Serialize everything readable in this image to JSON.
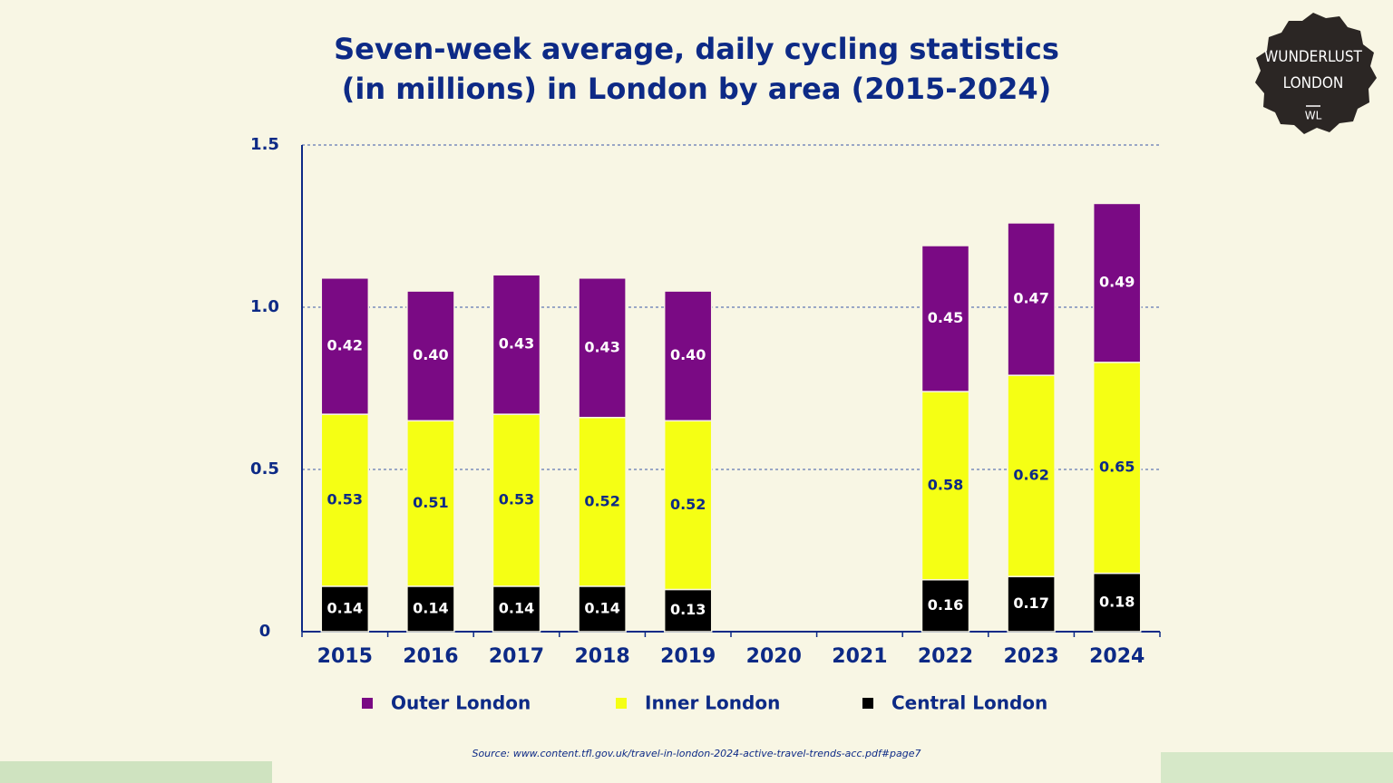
{
  "chart_data": {
    "type": "stacked-bar",
    "title": [
      "Seven-week average, daily cycling statistics",
      "(in millions) in London by area (2015-2024)"
    ],
    "categories": [
      "2015",
      "2016",
      "2017",
      "2018",
      "2019",
      "2020",
      "2021",
      "2022",
      "2023",
      "2024"
    ],
    "series": [
      {
        "name": "Central London",
        "color": "#000000",
        "values": [
          0.14,
          0.14,
          0.14,
          0.14,
          0.13,
          null,
          null,
          0.16,
          0.17,
          0.18
        ],
        "value_labels": [
          "0.14",
          "0.14",
          "0.14",
          "0.14",
          "0.13",
          null,
          null,
          "0.16",
          "0.17",
          "0.18"
        ]
      },
      {
        "name": "Inner London",
        "color": "#f5ff14",
        "values": [
          0.53,
          0.51,
          0.53,
          0.52,
          0.52,
          null,
          null,
          0.58,
          0.62,
          0.65
        ],
        "value_labels": [
          "0.53",
          "0.51",
          "0.53",
          "0.52",
          "0.52",
          null,
          null,
          "0.58",
          "0.62",
          "0.65"
        ]
      },
      {
        "name": "Outer London",
        "color": "#7a0a84",
        "values": [
          0.42,
          0.4,
          0.43,
          0.43,
          0.4,
          null,
          null,
          0.45,
          0.47,
          0.49
        ],
        "value_labels": [
          "0.42",
          "0.40",
          "0.43",
          "0.43",
          "0.40",
          null,
          null,
          "0.45",
          "0.47",
          "0.49"
        ]
      }
    ],
    "ylim": [
      0,
      1.5
    ],
    "yticks": [
      0,
      0.5,
      {
        "value": 1,
        "label": "1.0"
      },
      1.5
    ],
    "grid": true,
    "legend": "bottom",
    "source": "Source: www.content.tfl.gov.uk/travel-in-london-2024-active-travel-trends-acc.pdf#page7"
  },
  "logo": {
    "line1": "WUNDERLUST",
    "line2": "LONDON",
    "mark": "WL"
  }
}
